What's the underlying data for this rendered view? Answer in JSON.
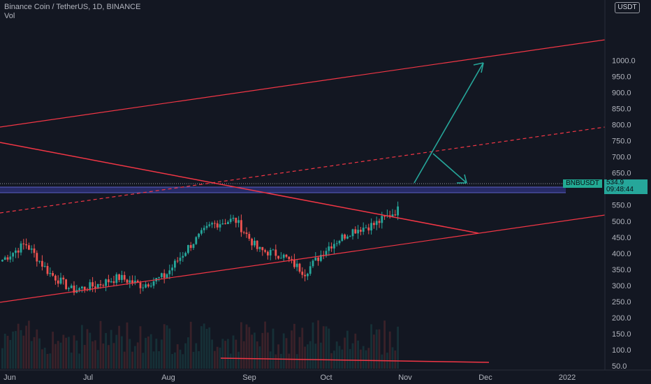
{
  "header": {
    "title": "Binance Coin / TetherUS, 1D, BINANCE",
    "indicator": "Vol"
  },
  "currency_button": "USDT",
  "price_axis": {
    "ticks": [
      "1000.0",
      "950.0",
      "900.0",
      "850.0",
      "800.0",
      "750.0",
      "700.0",
      "650.0",
      "600.0",
      "550.0",
      "500.0",
      "450.0",
      "400.0",
      "350.0",
      "300.0",
      "250.0",
      "200.0",
      "150.0",
      "100.0",
      "50.0"
    ]
  },
  "time_axis": {
    "labels": [
      "Jun",
      "Jul",
      "Aug",
      "Sep",
      "Oct",
      "Nov",
      "Dec",
      "2022"
    ]
  },
  "symbol_badge": "BNBUSDT",
  "price_badge": {
    "price": "534.9",
    "countdown": "09:48:44"
  },
  "colors": {
    "background": "#131722",
    "up": "#26a69a",
    "down": "#ef5350",
    "trendline": "#f23645",
    "arrow": "#26a69a",
    "zone": "#2a2e6e"
  },
  "chart_data": {
    "type": "candlestick",
    "symbol": "BNBUSDT",
    "interval": "1D",
    "exchange": "BINANCE",
    "ylim": [
      0,
      1060
    ],
    "x_range": [
      "Jun",
      "2022"
    ],
    "last_price": 534.9,
    "candles_anchor_closes": [
      {
        "t": "Jun",
        "close": 380
      },
      {
        "t": "early Jun",
        "close": 430
      },
      {
        "t": "mid Jun",
        "close": 340
      },
      {
        "t": "late Jun",
        "close": 285
      },
      {
        "t": "Jul",
        "close": 300
      },
      {
        "t": "mid Jul",
        "close": 325
      },
      {
        "t": "late Jul",
        "close": 300
      },
      {
        "t": "Aug",
        "close": 330
      },
      {
        "t": "mid Aug",
        "close": 420
      },
      {
        "t": "late Aug",
        "close": 490
      },
      {
        "t": "Sep",
        "close": 505
      },
      {
        "t": "early Sep",
        "close": 410
      },
      {
        "t": "mid Sep",
        "close": 395
      },
      {
        "t": "late Sep",
        "close": 340
      },
      {
        "t": "Oct",
        "close": 420
      },
      {
        "t": "mid Oct",
        "close": 470
      },
      {
        "t": "late Oct",
        "close": 490
      },
      {
        "t": "Nov",
        "close": 535
      }
    ],
    "grid": true
  }
}
